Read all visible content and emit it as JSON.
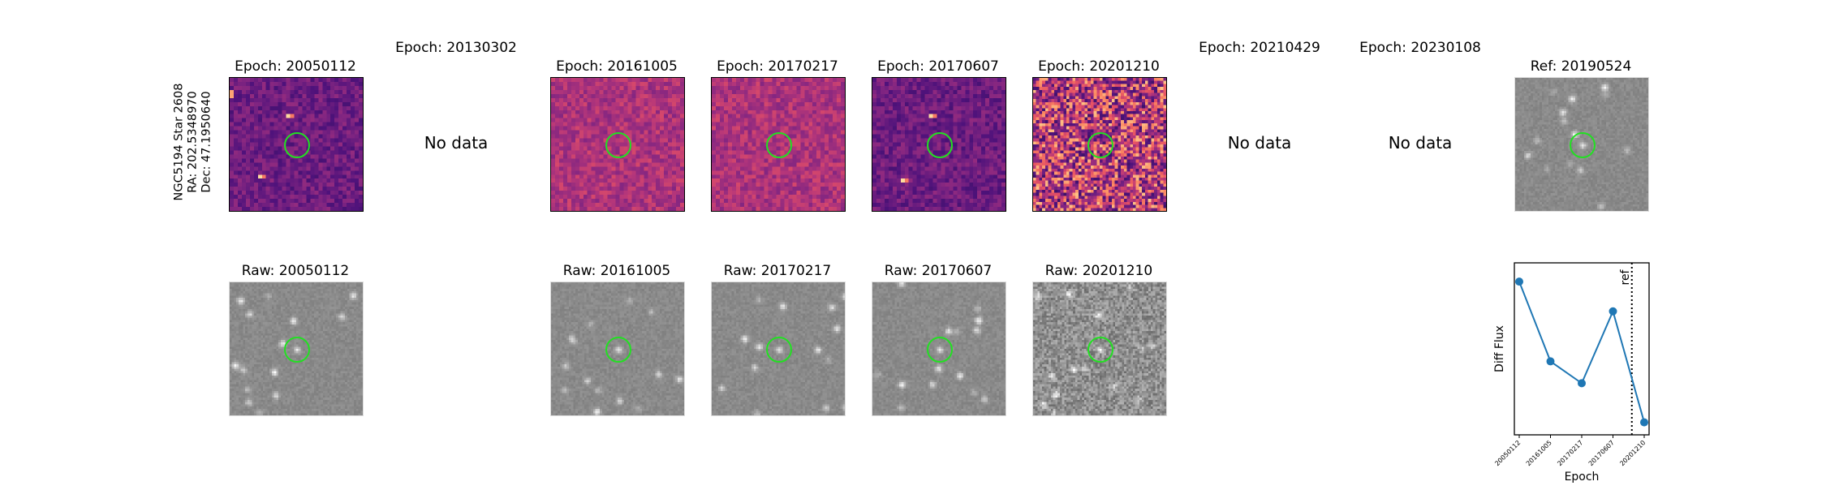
{
  "star": {
    "line1": "NGC5194 Star 2608",
    "line2": "RA: 202.5348970",
    "line3": "Dec: 47.1950640"
  },
  "epoch_titles": [
    "Epoch: 20050112",
    "Epoch: 20130302",
    "Epoch: 20161005",
    "Epoch: 20170217",
    "Epoch: 20170607",
    "Epoch: 20201210",
    "Epoch: 20210429",
    "Epoch: 20230108"
  ],
  "ref_title": "Ref: 20190524",
  "raw_titles": [
    "Raw: 20050112",
    "Raw: 20161005",
    "Raw: 20170217",
    "Raw: 20170607",
    "Raw: 20201210"
  ],
  "no_data_label": "No data",
  "colors": {
    "circle": "#22e022",
    "line": "#1f77b4"
  },
  "chart_data": {
    "type": "line",
    "title": "",
    "xlabel": "Epoch",
    "ylabel": "Diff Flux",
    "categories": [
      "20050112",
      "20161005",
      "20170217",
      "20170607",
      "20201210"
    ],
    "values": [
      0.93,
      0.42,
      0.28,
      0.74,
      0.03
    ],
    "ylim": [
      -0.05,
      1.05
    ],
    "ref_marker": {
      "label": "ref",
      "position_between": [
        "20170607",
        "20201210"
      ],
      "style": "dotted"
    },
    "grid": false,
    "y_tick_labels": false
  }
}
